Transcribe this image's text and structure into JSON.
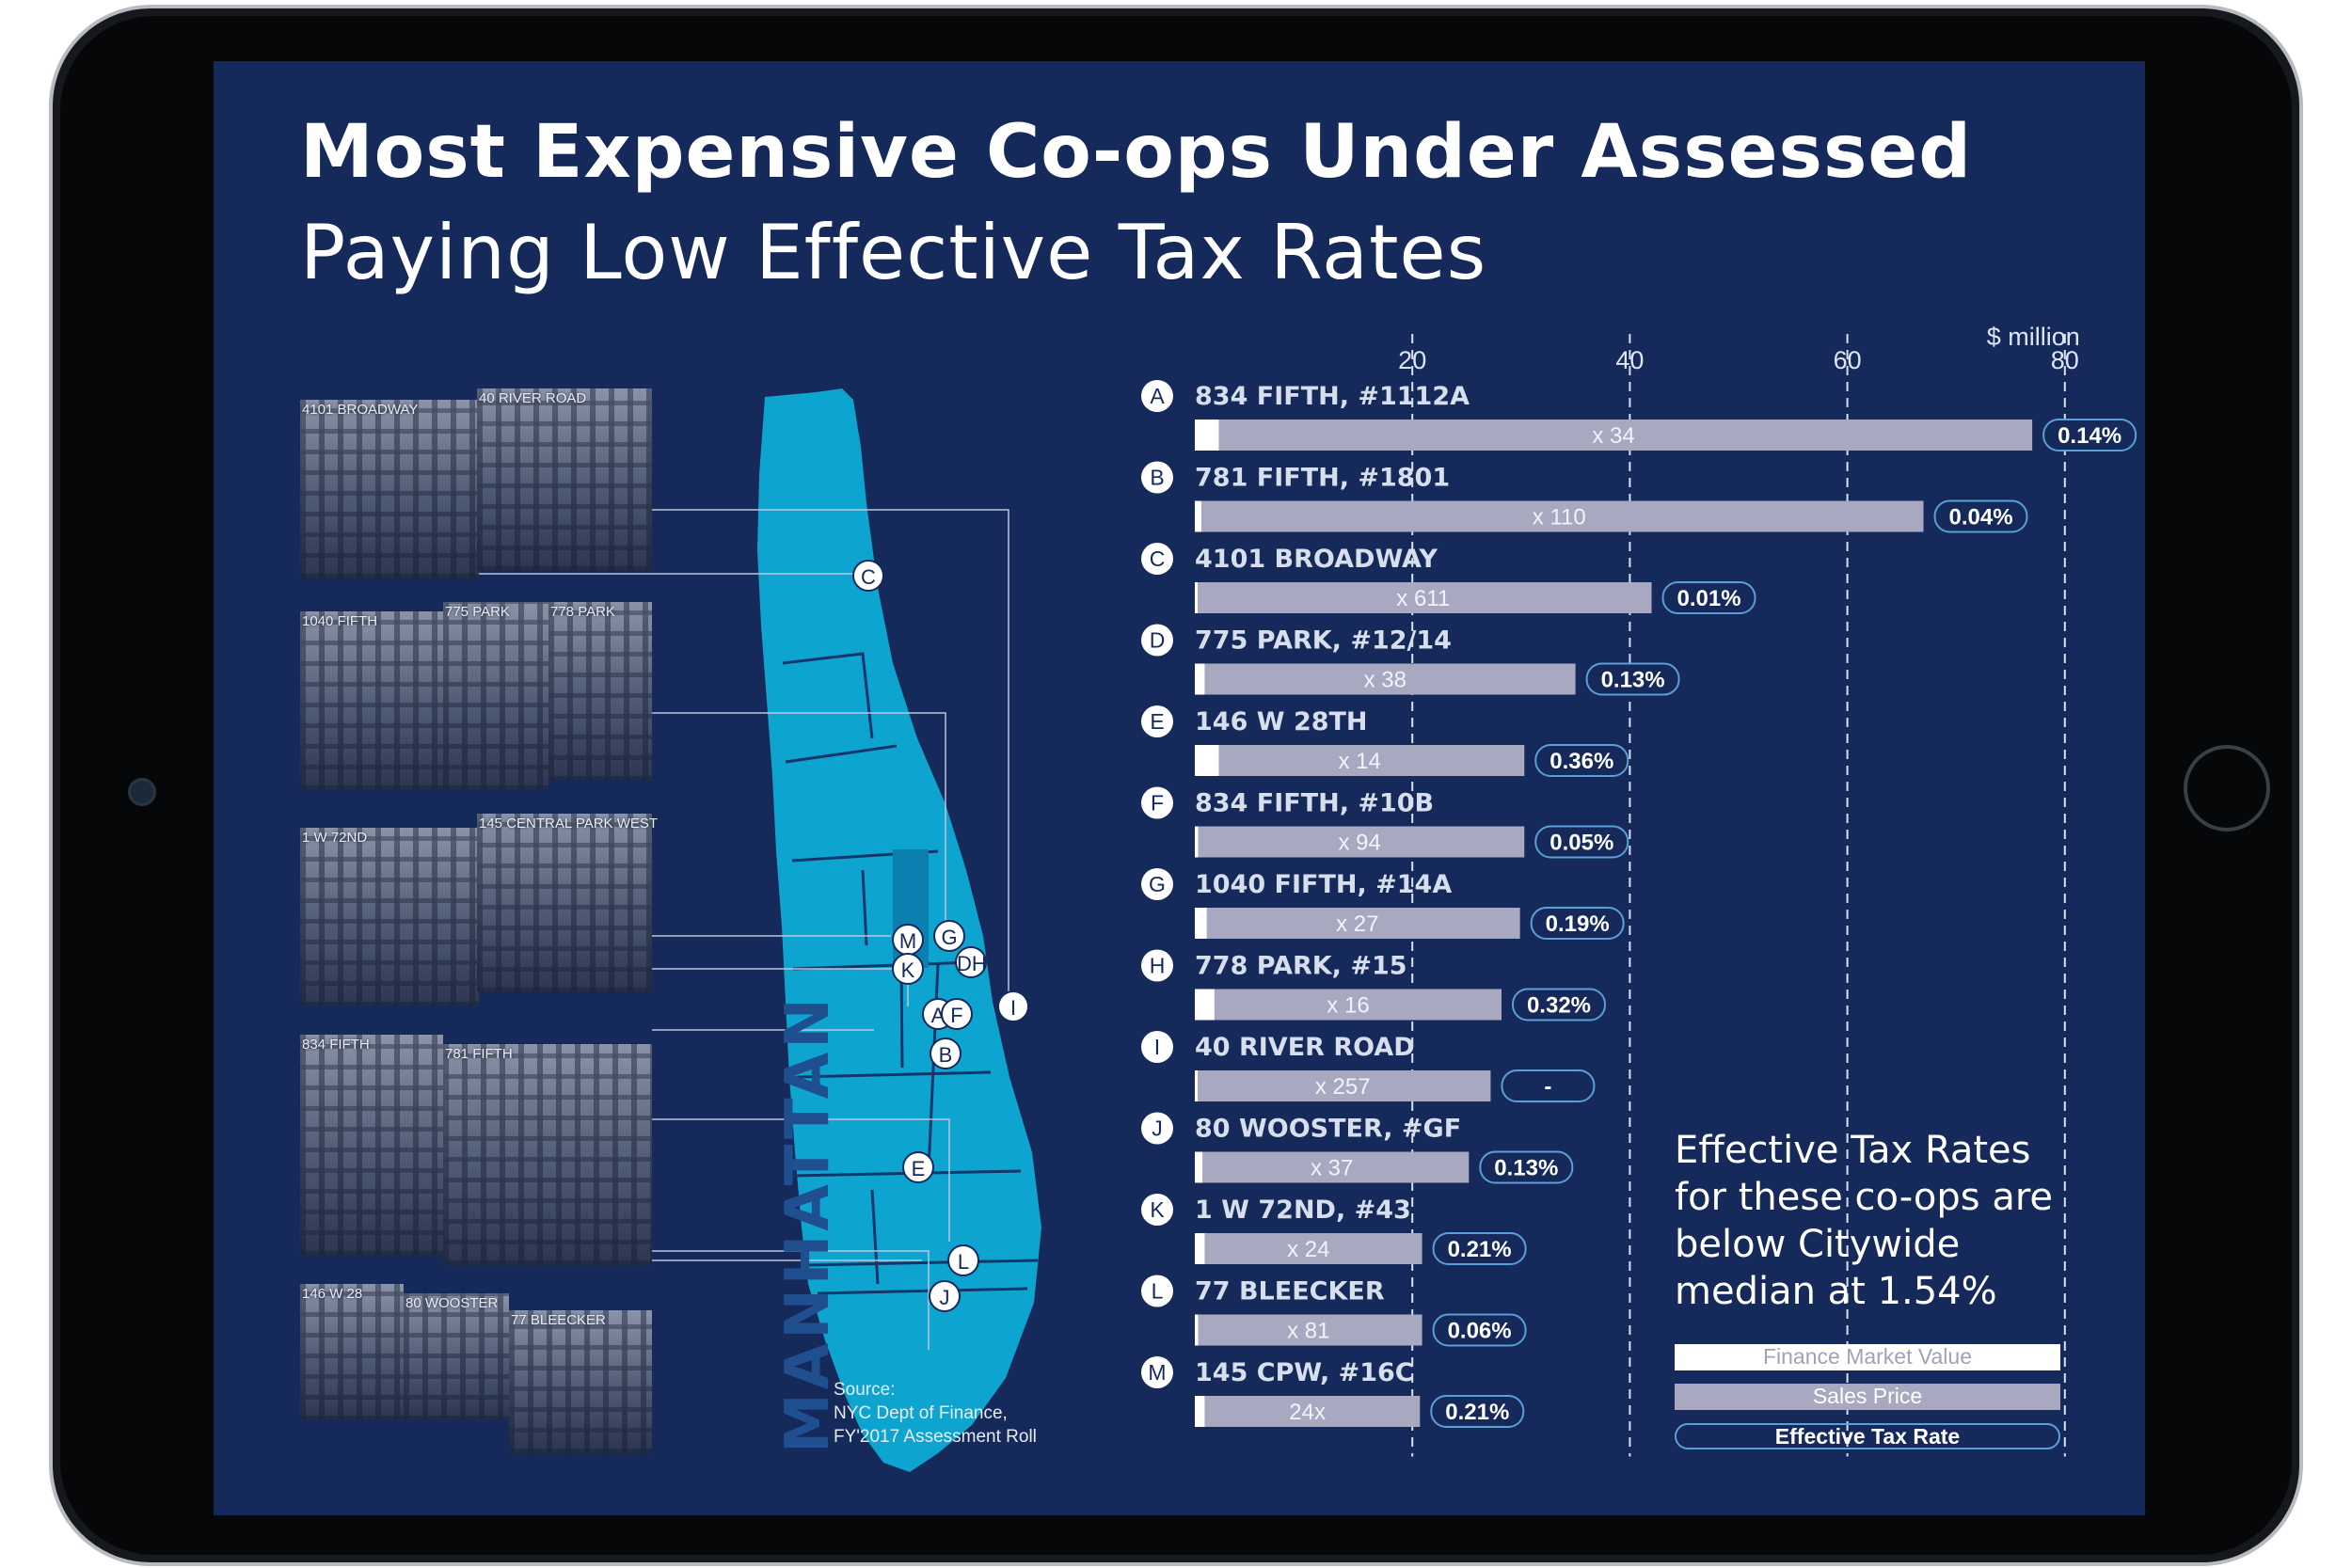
{
  "title": "Most Expensive Co-ops Under Assessed",
  "subtitle": "Paying Low Effective Tax Rates",
  "map": {
    "label": "MANHATTAN",
    "markers": [
      "C",
      "M",
      "G",
      "K",
      "DH",
      "I",
      "A",
      "F",
      "B",
      "E",
      "L",
      "J"
    ]
  },
  "photos": [
    {
      "caption": "4101 BROADWAY"
    },
    {
      "caption": "40 RIVER ROAD"
    },
    {
      "caption": "1040 FIFTH"
    },
    {
      "caption": "775 PARK"
    },
    {
      "caption": "778 PARK"
    },
    {
      "caption": "1 W 72ND"
    },
    {
      "caption": "145 CENTRAL PARK WEST"
    },
    {
      "caption": "834 FIFTH"
    },
    {
      "caption": "781 FIFTH"
    },
    {
      "caption": "146 W 28"
    },
    {
      "caption": "80 WOOSTER"
    },
    {
      "caption": "77 BLEECKER"
    }
  ],
  "source": {
    "line1": "Source:",
    "line2": "NYC Dept of Finance,",
    "line3": "FY'2017 Assessment Roll"
  },
  "legend": {
    "note": "Effective Tax Rates for these co-ops are below Citywide median at 1.54%",
    "market": "Finance Market Value",
    "sales": "Sales Price",
    "rate": "Effective Tax Rate"
  },
  "colors": {
    "background": "#15295a",
    "bar_sales": "#a8a9c0",
    "bar_market": "#ffffff",
    "map": "#0ea4d0",
    "rate_border": "#5aa0d8"
  },
  "chart_data": {
    "type": "bar",
    "unit": "$ million",
    "xlim": [
      0,
      80
    ],
    "ticks": [
      20,
      40,
      60,
      80
    ],
    "rows": [
      {
        "letter": "A",
        "name": "834 FIFTH, #1112A",
        "sales": 77,
        "market": 2.2,
        "multiple": "x 34",
        "rate": "0.14%"
      },
      {
        "letter": "B",
        "name": "781 FIFTH, #1801",
        "sales": 67,
        "market": 0.6,
        "multiple": "x 110",
        "rate": "0.04%"
      },
      {
        "letter": "C",
        "name": "4101 BROADWAY",
        "sales": 42,
        "market": 0.07,
        "multiple": "x 611",
        "rate": "0.01%"
      },
      {
        "letter": "D",
        "name": "775 PARK, #12/14",
        "sales": 35,
        "market": 0.9,
        "multiple": "x 38",
        "rate": "0.13%"
      },
      {
        "letter": "E",
        "name": "146 W 28TH",
        "sales": 30.3,
        "market": 2.2,
        "multiple": "x 14",
        "rate": "0.36%"
      },
      {
        "letter": "F",
        "name": "834 FIFTH, #10B",
        "sales": 30.3,
        "market": 0.3,
        "multiple": "x 94",
        "rate": "0.05%"
      },
      {
        "letter": "G",
        "name": "1040 FIFTH, #14A",
        "sales": 29.9,
        "market": 1.1,
        "multiple": "x 27",
        "rate": "0.19%"
      },
      {
        "letter": "H",
        "name": "778 PARK, #15",
        "sales": 28.2,
        "market": 1.8,
        "multiple": "x 16",
        "rate": "0.32%"
      },
      {
        "letter": "I",
        "name": "40 RIVER ROAD",
        "sales": 27.2,
        "market": 0.1,
        "multiple": "x 257",
        "rate": "-"
      },
      {
        "letter": "J",
        "name": "80 WOOSTER, #GF",
        "sales": 25.2,
        "market": 0.7,
        "multiple": "x 37",
        "rate": "0.13%"
      },
      {
        "letter": "K",
        "name": "1 W 72ND, #43",
        "sales": 20.9,
        "market": 0.9,
        "multiple": "x 24",
        "rate": "0.21%"
      },
      {
        "letter": "L",
        "name": "77 BLEECKER",
        "sales": 20.9,
        "market": 0.3,
        "multiple": "x 81",
        "rate": "0.06%"
      },
      {
        "letter": "M",
        "name": "145 CPW, #16C",
        "sales": 20.7,
        "market": 0.9,
        "multiple": "24x",
        "rate": "0.21%"
      }
    ]
  }
}
